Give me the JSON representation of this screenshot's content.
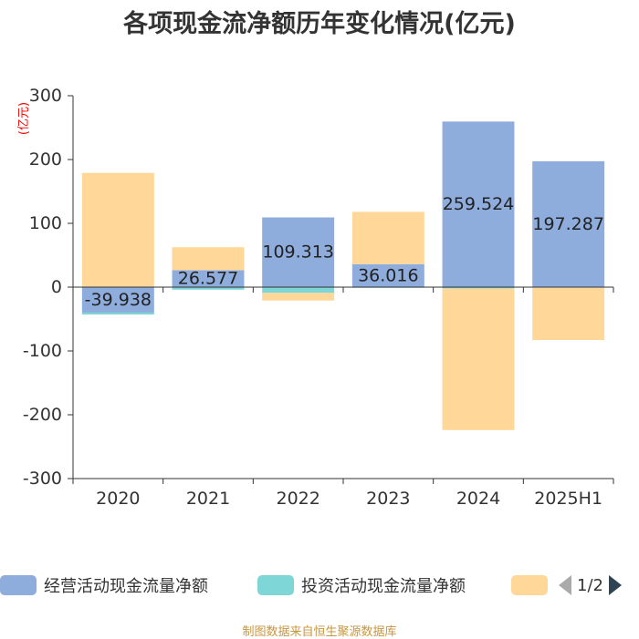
{
  "title": "各项现金流净额历年变化情况(亿元)",
  "source_note": "制图数据来自恒生聚源数据库",
  "pager": {
    "text": "1/2"
  },
  "colors": {
    "operating": "#8eacdc",
    "investing": "#7fd6d6",
    "financing": "#ffd899",
    "axis": "#333333",
    "unit": "#ff0000"
  },
  "chart_data": {
    "type": "bar",
    "stacked": true,
    "title": "各项现金流净额历年变化情况(亿元)",
    "ylabel": "(亿元)",
    "ylim": [
      -300,
      300
    ],
    "yticks": [
      300,
      200,
      100,
      0,
      -100,
      -200,
      -300
    ],
    "categories": [
      "2020",
      "2021",
      "2022",
      "2023",
      "2024",
      "2025H1"
    ],
    "series": [
      {
        "name": "经营活动现金流量净额",
        "color": "#8eacdc",
        "values": [
          -39.938,
          26.577,
          109.313,
          36.016,
          259.524,
          197.287
        ],
        "labels": [
          "-39.938",
          "26.577",
          "109.313",
          "36.016",
          "259.524",
          "197.287"
        ]
      },
      {
        "name": "投资活动现金流量净额",
        "color": "#7fd6d6",
        "values": [
          -3,
          -4,
          -9,
          -1,
          -2,
          -1
        ]
      },
      {
        "name": "",
        "color": "#ffd899",
        "values": [
          179,
          36,
          -12,
          82,
          -222,
          -82
        ]
      }
    ],
    "grid": false,
    "legend_position": "bottom"
  }
}
